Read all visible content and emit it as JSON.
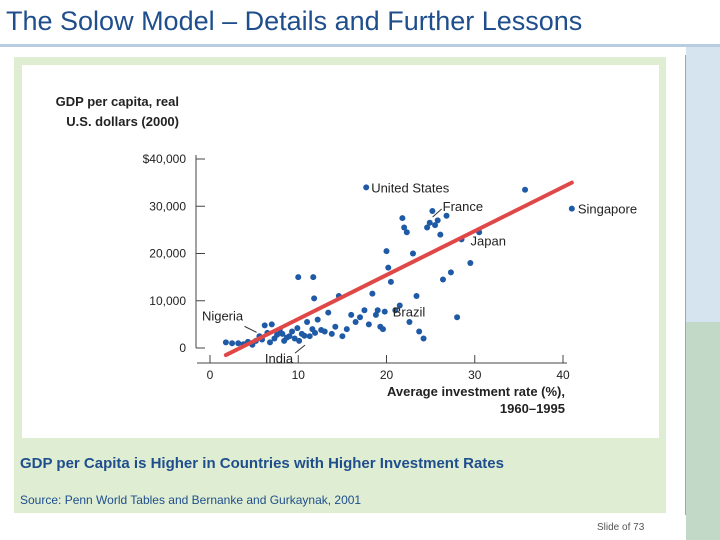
{
  "slide": {
    "title": "The Solow Model – Details and Further Lessons",
    "slide_number_text": "Slide of 73"
  },
  "figure": {
    "caption": "GDP per Capita is Higher in Countries with Higher Investment Rates",
    "source": "Source: Penn World Tables and Bernanke and Gurkaynak, 2001"
  },
  "colors": {
    "title": "#1f4e8c",
    "points": "#1f5aa6",
    "trend_line": "#e04848",
    "panel": "#dfedd3"
  },
  "chart_data": {
    "type": "scatter",
    "ylabel": [
      "GDP per capita, real",
      "U.S. dollars (2000)"
    ],
    "xlabel": [
      "Average investment rate (%),",
      "1960–1995"
    ],
    "xlim": [
      0,
      40
    ],
    "ylim": [
      0,
      40000
    ],
    "x_ticks": [
      0,
      10,
      20,
      30,
      40
    ],
    "x_tick_labels": [
      "0",
      "10",
      "20",
      "30",
      "40"
    ],
    "y_ticks": [
      0,
      10000,
      20000,
      30000,
      40000
    ],
    "y_tick_labels": [
      "0",
      "10,000",
      "20,000",
      "30,000",
      "$40,000"
    ],
    "trend_line": {
      "x": [
        1.8,
        41
      ],
      "y": [
        -1500,
        35000
      ]
    },
    "annotations": [
      {
        "label": "United States",
        "x": 17.7,
        "y": 34000
      },
      {
        "label": "Singapore",
        "x": 41,
        "y": 29500
      },
      {
        "label": "France",
        "x": 25,
        "y": 27300
      },
      {
        "label": "Japan",
        "x": 28.5,
        "y": 22700
      },
      {
        "label": "Brazil",
        "x": 19.8,
        "y": 7700
      },
      {
        "label": "Nigeria",
        "x": 5.5,
        "y": 5000
      },
      {
        "label": "India",
        "x": 8.5,
        "y": -1500
      }
    ],
    "points": [
      [
        1.8,
        1200
      ],
      [
        2.5,
        1000
      ],
      [
        3.2,
        1000
      ],
      [
        3.8,
        800
      ],
      [
        4.3,
        1300
      ],
      [
        4.8,
        700
      ],
      [
        5.2,
        1500
      ],
      [
        5.6,
        2500
      ],
      [
        5.9,
        1800
      ],
      [
        6.2,
        4800
      ],
      [
        6.5,
        3200
      ],
      [
        6.8,
        1200
      ],
      [
        7.0,
        5000
      ],
      [
        7.3,
        2000
      ],
      [
        7.6,
        2800
      ],
      [
        7.9,
        3800
      ],
      [
        8.2,
        3000
      ],
      [
        8.4,
        1500
      ],
      [
        8.7,
        2200
      ],
      [
        9.0,
        2500
      ],
      [
        9.3,
        3500
      ],
      [
        9.6,
        2000
      ],
      [
        9.9,
        4200
      ],
      [
        10.1,
        1500
      ],
      [
        10.4,
        3000
      ],
      [
        10.7,
        2600
      ],
      [
        11.0,
        5500
      ],
      [
        11.3,
        2500
      ],
      [
        11.6,
        4000
      ],
      [
        11.9,
        3200
      ],
      [
        12.2,
        6000
      ],
      [
        12.6,
        3800
      ],
      [
        13.0,
        3500
      ],
      [
        13.4,
        7500
      ],
      [
        13.8,
        3000
      ],
      [
        14.2,
        4500
      ],
      [
        14.6,
        11000
      ],
      [
        15.0,
        2500
      ],
      [
        15.5,
        4000
      ],
      [
        10.0,
        15000
      ],
      [
        11.7,
        15000
      ],
      [
        11.8,
        10500
      ],
      [
        17.7,
        34000
      ],
      [
        16.0,
        7000
      ],
      [
        16.5,
        5500
      ],
      [
        17.0,
        6500
      ],
      [
        17.5,
        8000
      ],
      [
        18.0,
        5000
      ],
      [
        18.4,
        11500
      ],
      [
        18.8,
        7000
      ],
      [
        19.0,
        8000
      ],
      [
        19.3,
        4500
      ],
      [
        19.6,
        4000
      ],
      [
        19.8,
        7700
      ],
      [
        20.0,
        20500
      ],
      [
        20.2,
        17000
      ],
      [
        20.5,
        14000
      ],
      [
        21.0,
        8000
      ],
      [
        21.5,
        9000
      ],
      [
        21.8,
        27500
      ],
      [
        22.0,
        25500
      ],
      [
        22.3,
        24500
      ],
      [
        22.6,
        5500
      ],
      [
        23.0,
        20000
      ],
      [
        23.4,
        11000
      ],
      [
        23.7,
        3500
      ],
      [
        24.2,
        2000
      ],
      [
        24.6,
        25500
      ],
      [
        24.9,
        26500
      ],
      [
        25.2,
        29000
      ],
      [
        25.5,
        26000
      ],
      [
        25.8,
        27000
      ],
      [
        26.1,
        24000
      ],
      [
        26.4,
        14500
      ],
      [
        26.8,
        28000
      ],
      [
        27.3,
        16000
      ],
      [
        28.0,
        6500
      ],
      [
        28.5,
        23000
      ],
      [
        29.5,
        18000
      ],
      [
        30.5,
        24500
      ],
      [
        35.7,
        33500
      ],
      [
        41.0,
        29500
      ]
    ]
  }
}
